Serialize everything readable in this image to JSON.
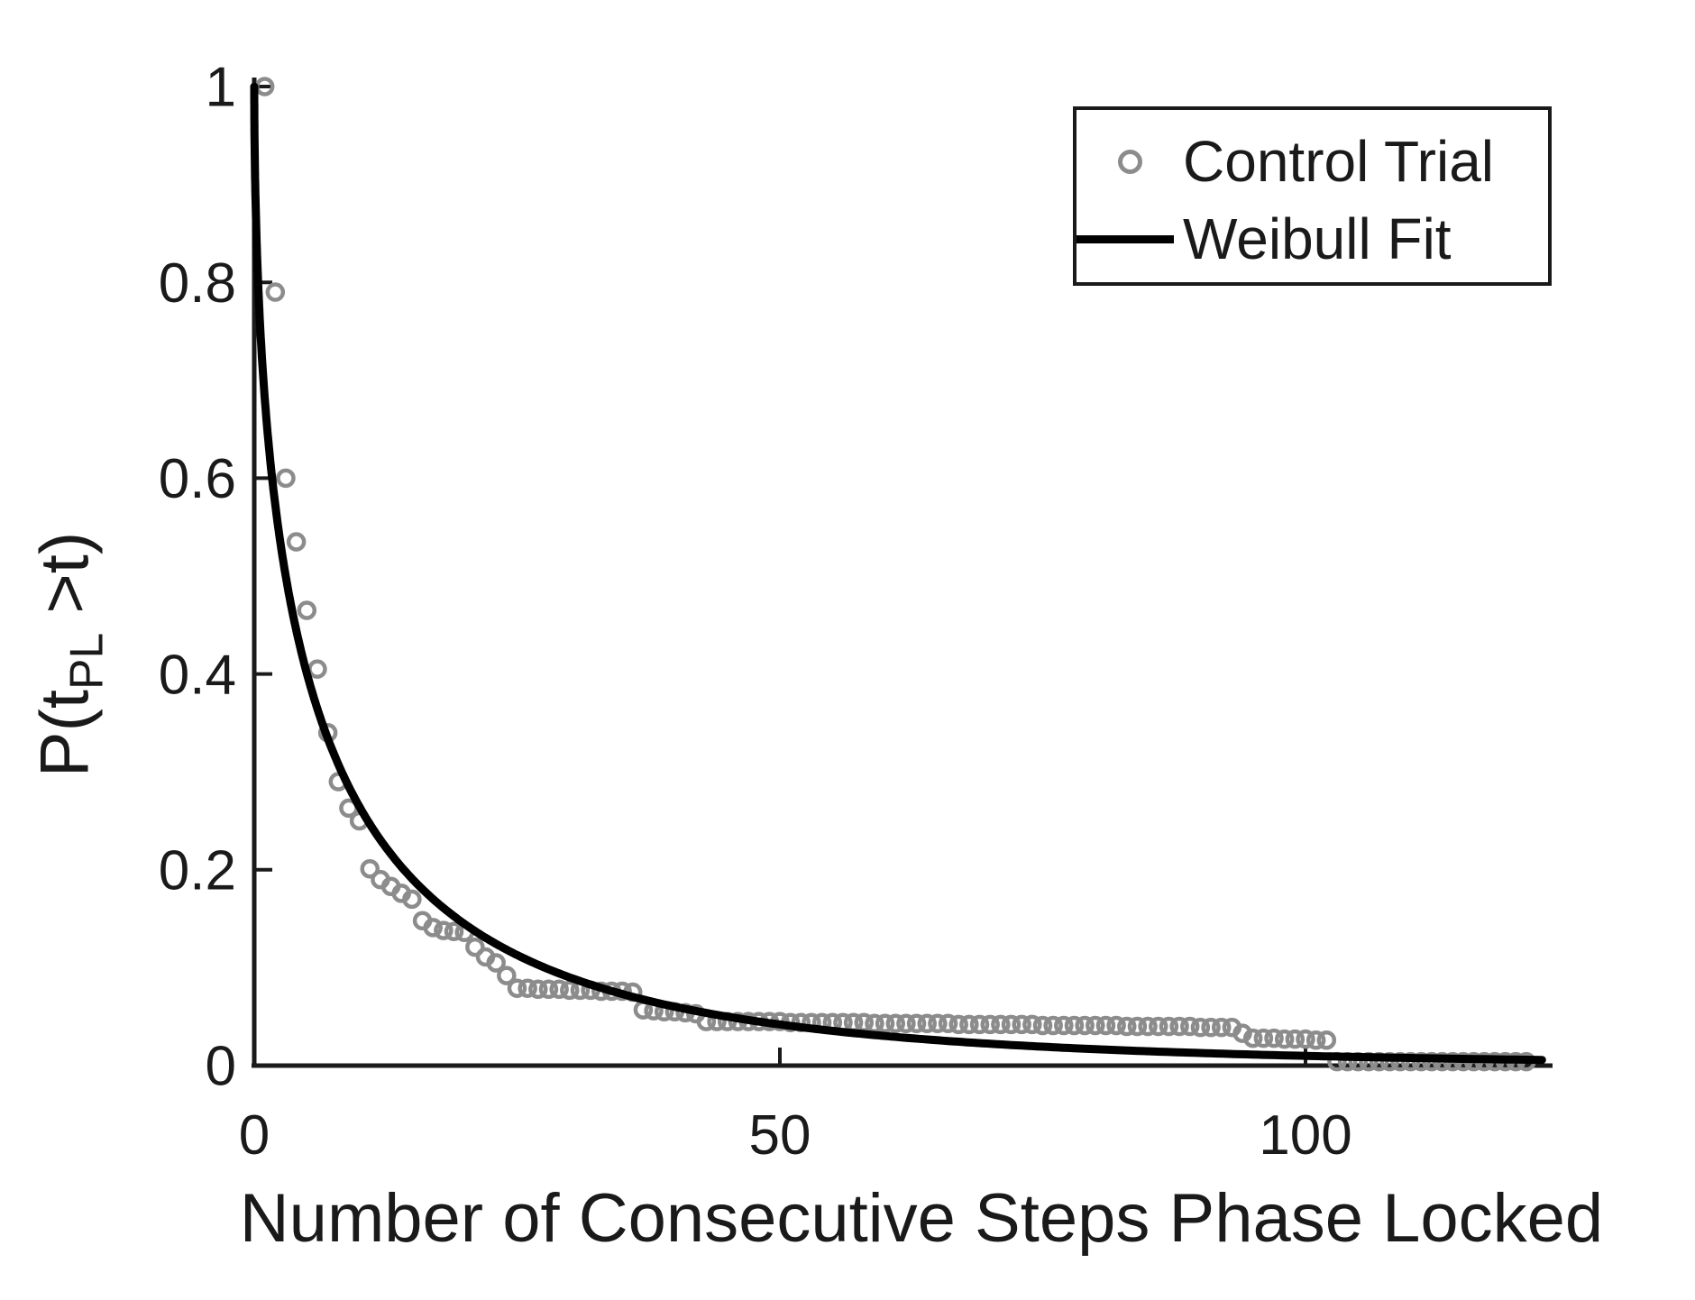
{
  "figure": {
    "background": "#ffffff",
    "text_color": "#1a1a1a",
    "axis_color": "#1a1a1a"
  },
  "chart_data": {
    "type": "scatter",
    "title": "",
    "xlabel": "Number of Consecutive Steps Phase Locked",
    "ylabel": {
      "prefix": "P(t",
      "sub": "PL",
      "suffix": " >t)"
    },
    "xlim": [
      0,
      123.5
    ],
    "ylim": [
      0,
      1
    ],
    "xticks": [
      0,
      50,
      100
    ],
    "xtick_labels": [
      "0",
      "50",
      "100"
    ],
    "yticks": [
      0,
      0.2,
      0.4,
      0.6,
      0.8,
      1
    ],
    "ytick_labels": [
      "0",
      "0.2",
      "0.4",
      "0.6",
      "0.8",
      "1"
    ],
    "grid": false,
    "legend_position": "top-right",
    "series": [
      {
        "name": "Control Trial",
        "type": "scatter",
        "marker": "open-circle",
        "color": "#8c8c8c",
        "points": [
          [
            1,
            1.0
          ],
          [
            2,
            0.79
          ],
          [
            3,
            0.6
          ],
          [
            4,
            0.535
          ],
          [
            5,
            0.465
          ],
          [
            6,
            0.405
          ],
          [
            7,
            0.34
          ],
          [
            8,
            0.29
          ],
          [
            9,
            0.263
          ],
          [
            10,
            0.25
          ],
          [
            11,
            0.201
          ],
          [
            12,
            0.19
          ],
          [
            13,
            0.183
          ],
          [
            14,
            0.176
          ],
          [
            15,
            0.17
          ],
          [
            16,
            0.148
          ],
          [
            17,
            0.141
          ],
          [
            18,
            0.138
          ],
          [
            19,
            0.137
          ],
          [
            20,
            0.136
          ],
          [
            21,
            0.121
          ],
          [
            22,
            0.111
          ],
          [
            23,
            0.105
          ],
          [
            24,
            0.092
          ],
          [
            25,
            0.079
          ],
          [
            26,
            0.079
          ],
          [
            27,
            0.078
          ],
          [
            28,
            0.078
          ],
          [
            29,
            0.078
          ],
          [
            30,
            0.077
          ],
          [
            31,
            0.077
          ],
          [
            32,
            0.077
          ],
          [
            33,
            0.076
          ],
          [
            34,
            0.076
          ],
          [
            35,
            0.076
          ],
          [
            36,
            0.075
          ],
          [
            37,
            0.057
          ],
          [
            38,
            0.056
          ],
          [
            39,
            0.055
          ],
          [
            40,
            0.055
          ],
          [
            41,
            0.054
          ],
          [
            42,
            0.053
          ],
          [
            43,
            0.045
          ],
          [
            44,
            0.045
          ],
          [
            45,
            0.045
          ],
          [
            46,
            0.045
          ],
          [
            47,
            0.045
          ],
          [
            48,
            0.045
          ],
          [
            49,
            0.045
          ],
          [
            50,
            0.045
          ],
          [
            51,
            0.044
          ],
          [
            52,
            0.044
          ],
          [
            53,
            0.044
          ],
          [
            54,
            0.044
          ],
          [
            55,
            0.044
          ],
          [
            56,
            0.044
          ],
          [
            57,
            0.044
          ],
          [
            58,
            0.044
          ],
          [
            59,
            0.043
          ],
          [
            60,
            0.043
          ],
          [
            61,
            0.043
          ],
          [
            62,
            0.043
          ],
          [
            63,
            0.043
          ],
          [
            64,
            0.043
          ],
          [
            65,
            0.043
          ],
          [
            66,
            0.043
          ],
          [
            67,
            0.042
          ],
          [
            68,
            0.042
          ],
          [
            69,
            0.042
          ],
          [
            70,
            0.042
          ],
          [
            71,
            0.042
          ],
          [
            72,
            0.042
          ],
          [
            73,
            0.042
          ],
          [
            74,
            0.042
          ],
          [
            75,
            0.041
          ],
          [
            76,
            0.041
          ],
          [
            77,
            0.041
          ],
          [
            78,
            0.041
          ],
          [
            79,
            0.041
          ],
          [
            80,
            0.041
          ],
          [
            81,
            0.041
          ],
          [
            82,
            0.041
          ],
          [
            83,
            0.04
          ],
          [
            84,
            0.04
          ],
          [
            85,
            0.04
          ],
          [
            86,
            0.04
          ],
          [
            87,
            0.04
          ],
          [
            88,
            0.04
          ],
          [
            89,
            0.04
          ],
          [
            90,
            0.039
          ],
          [
            91,
            0.039
          ],
          [
            92,
            0.039
          ],
          [
            93,
            0.039
          ],
          [
            94,
            0.033
          ],
          [
            95,
            0.028
          ],
          [
            96,
            0.028
          ],
          [
            97,
            0.028
          ],
          [
            98,
            0.027
          ],
          [
            99,
            0.027
          ],
          [
            100,
            0.027
          ],
          [
            101,
            0.026
          ],
          [
            102,
            0.026
          ],
          [
            103,
            0.004
          ],
          [
            104,
            0.004
          ],
          [
            105,
            0.004
          ],
          [
            106,
            0.004
          ],
          [
            107,
            0.004
          ],
          [
            108,
            0.004
          ],
          [
            109,
            0.004
          ],
          [
            110,
            0.004
          ],
          [
            111,
            0.004
          ],
          [
            112,
            0.004
          ],
          [
            113,
            0.004
          ],
          [
            114,
            0.004
          ],
          [
            115,
            0.004
          ],
          [
            116,
            0.004
          ],
          [
            117,
            0.004
          ],
          [
            118,
            0.004
          ],
          [
            119,
            0.004
          ],
          [
            120,
            0.004
          ],
          [
            121,
            0.004
          ]
        ]
      },
      {
        "name": "Weibull Fit",
        "type": "line",
        "color": "#000000",
        "weibull": {
          "shape": 0.54,
          "scale": 5.9
        },
        "x_range": [
          0,
          122.5
        ]
      }
    ]
  }
}
